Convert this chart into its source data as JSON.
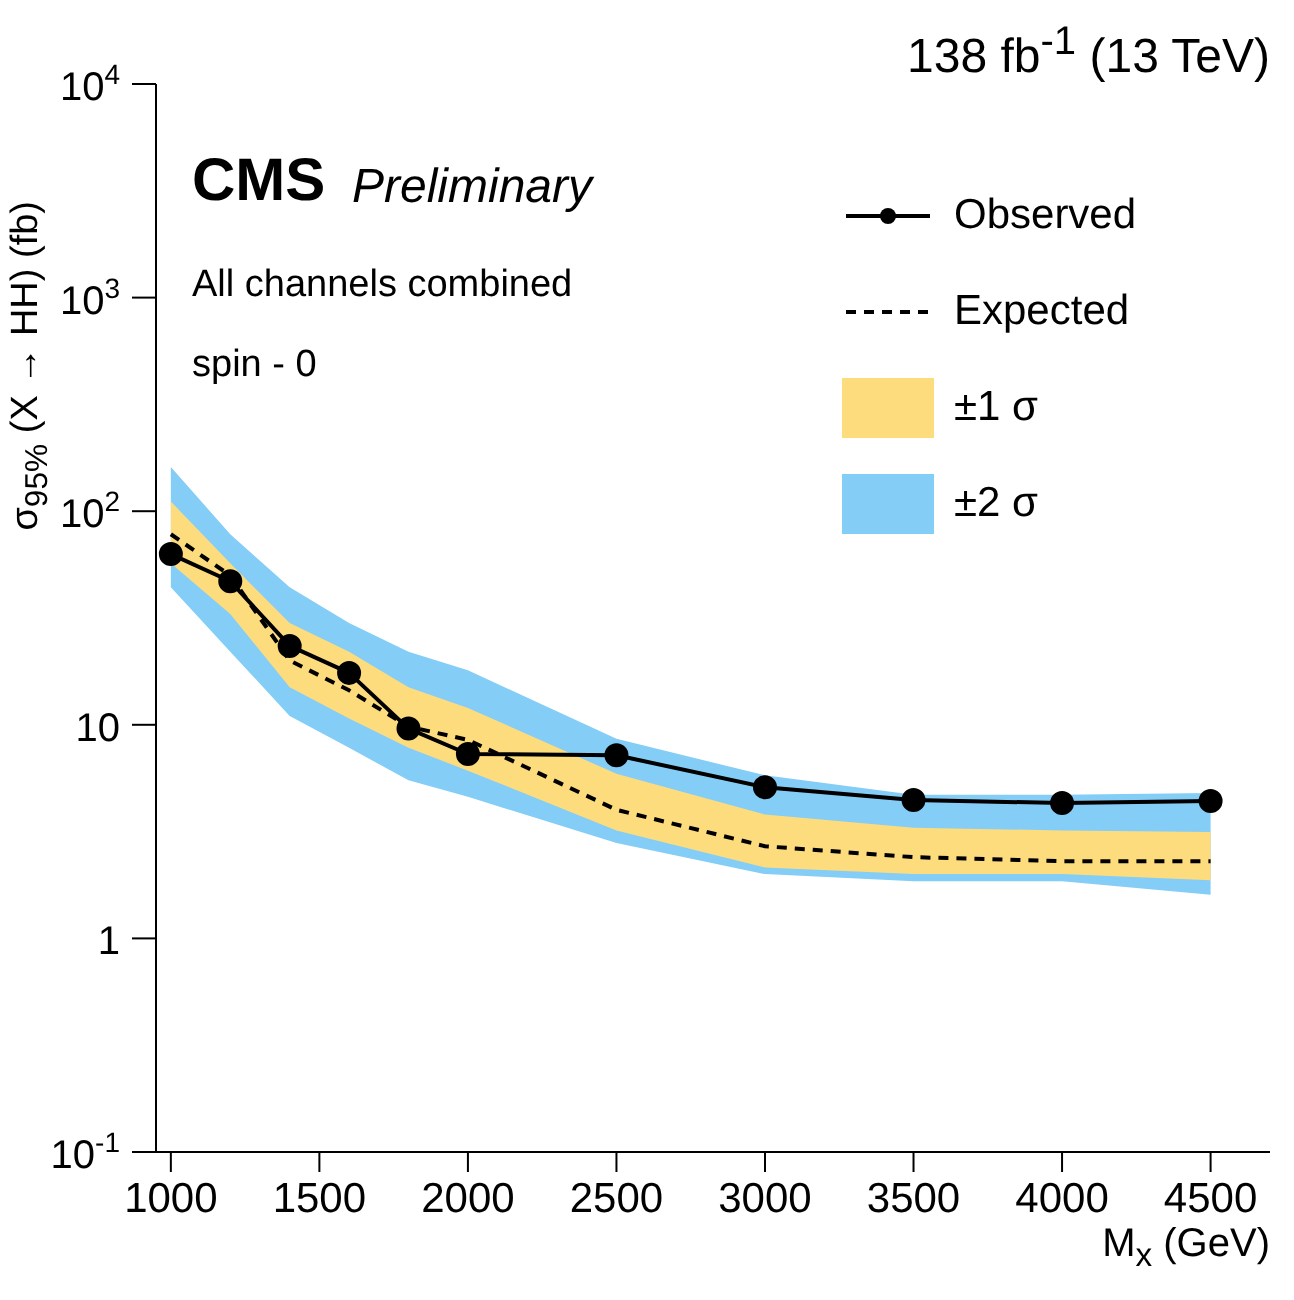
{
  "chart_data": {
    "type": "line",
    "title": "138 fb$^{-1}$ (13 TeV)",
    "xlabel": "M$_{x}$ (GeV)",
    "ylabel": "σ$_{95%}$ (X → HH) (fb)",
    "annotations": [
      "CMS",
      "Preliminary",
      "All channels combined",
      "spin - 0"
    ],
    "x": [
      1000,
      1200,
      1400,
      1600,
      1800,
      2000,
      2500,
      3000,
      3500,
      4000,
      4500
    ],
    "series": [
      {
        "name": "Observed",
        "type": "line",
        "color": "#000000",
        "marker": "circle",
        "line_style": "solid",
        "values": [
          63,
          47,
          23.4,
          17.5,
          9.6,
          7.3,
          7.2,
          5.1,
          4.45,
          4.3,
          4.4
        ]
      },
      {
        "name": "Expected",
        "type": "line",
        "color": "#000000",
        "marker": "none",
        "line_style": "dashed",
        "values": [
          78,
          50,
          20,
          14.5,
          9.8,
          8.5,
          4.0,
          2.7,
          2.4,
          2.3,
          2.3
        ]
      },
      {
        "name": "±1 σ",
        "type": "area",
        "color": "#fddc7e",
        "values": [
          null,
          null,
          null,
          null,
          null,
          null,
          null,
          null,
          null,
          null,
          null
        ],
        "lower": [
          57,
          33,
          15,
          10.7,
          7.8,
          6.1,
          3.2,
          2.15,
          2.0,
          2.0,
          1.87
        ],
        "upper": [
          111,
          57,
          30,
          22,
          15,
          12,
          5.9,
          3.8,
          3.3,
          3.2,
          3.15
        ]
      },
      {
        "name": "±2 σ",
        "type": "area",
        "color": "#84cdf7",
        "values": [
          null,
          null,
          null,
          null,
          null,
          null,
          null,
          null,
          null,
          null,
          null
        ],
        "lower": [
          44,
          22,
          11,
          7.8,
          5.5,
          4.6,
          2.8,
          2.0,
          1.85,
          1.85,
          1.6
        ],
        "upper": [
          161,
          78,
          44,
          30,
          22,
          18,
          8.6,
          5.8,
          4.7,
          4.7,
          4.8
        ]
      }
    ],
    "log": "y",
    "xlim": [
      950,
      4700
    ],
    "xticks": [
      1000,
      1500,
      2000,
      2500,
      3000,
      3500,
      4000,
      4500
    ],
    "ylim": [
      0.1,
      10000
    ],
    "yticks": [
      {
        "value": 0.1,
        "label": "10$^{-1}$"
      },
      1,
      10,
      {
        "value": 100,
        "label": "10$^{2}$"
      },
      {
        "value": 1000,
        "label": "10$^{3}$"
      },
      {
        "value": 10000,
        "label": "10$^{4}$"
      }
    ],
    "grid": false,
    "legend": "top right"
  }
}
